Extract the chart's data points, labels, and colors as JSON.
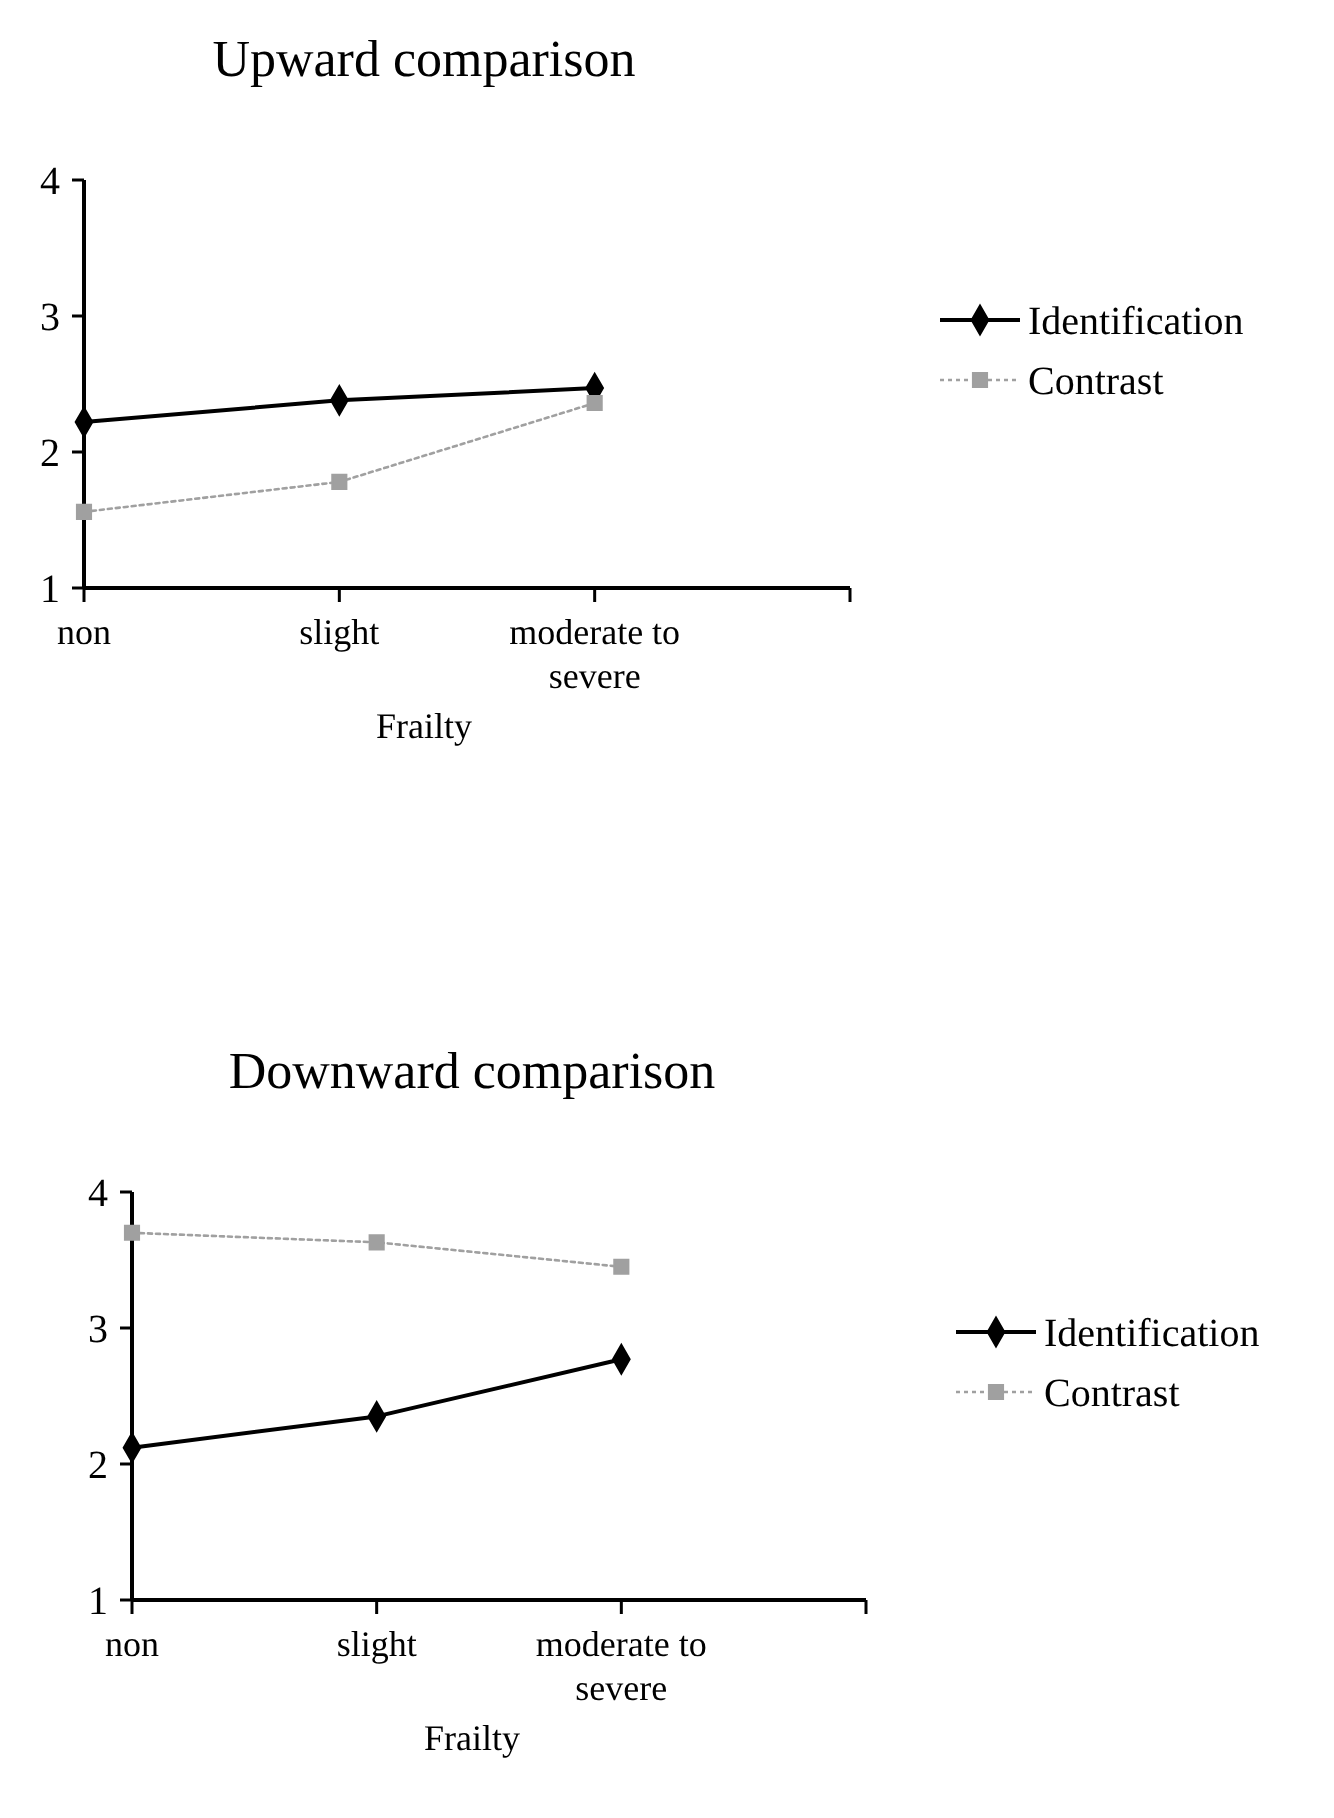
{
  "chart_data": [
    {
      "type": "line",
      "title": "Upward comparison",
      "xlabel": "Frailty",
      "categories": [
        "non",
        "slight",
        "moderate to severe",
        null
      ],
      "ylim": [
        1,
        4
      ],
      "yticks": [
        1,
        2,
        3,
        4
      ],
      "grid": false,
      "legend": "right",
      "series": [
        {
          "name": "Identification",
          "color": "#000000",
          "values": [
            2.22,
            2.38,
            2.47,
            null
          ],
          "marker": "diamond",
          "line_style": "solid"
        },
        {
          "name": "Contrast",
          "color": "#a0a0a0",
          "values": [
            1.56,
            1.78,
            2.36,
            null
          ],
          "marker": "square",
          "line_style": "dotted"
        }
      ]
    },
    {
      "type": "line",
      "title": "Downward comparison",
      "xlabel": "Frailty",
      "categories": [
        "non",
        "slight",
        "moderate to severe",
        null
      ],
      "ylim": [
        1,
        4
      ],
      "yticks": [
        1,
        2,
        3,
        4
      ],
      "grid": false,
      "legend": "right",
      "series": [
        {
          "name": "Identification",
          "color": "#000000",
          "values": [
            2.12,
            2.35,
            2.77,
            null
          ],
          "marker": "diamond",
          "line_style": "solid"
        },
        {
          "name": "Contrast",
          "color": "#a0a0a0",
          "values": [
            3.7,
            3.63,
            3.45,
            null
          ],
          "marker": "square",
          "line_style": "dotted"
        }
      ]
    }
  ]
}
